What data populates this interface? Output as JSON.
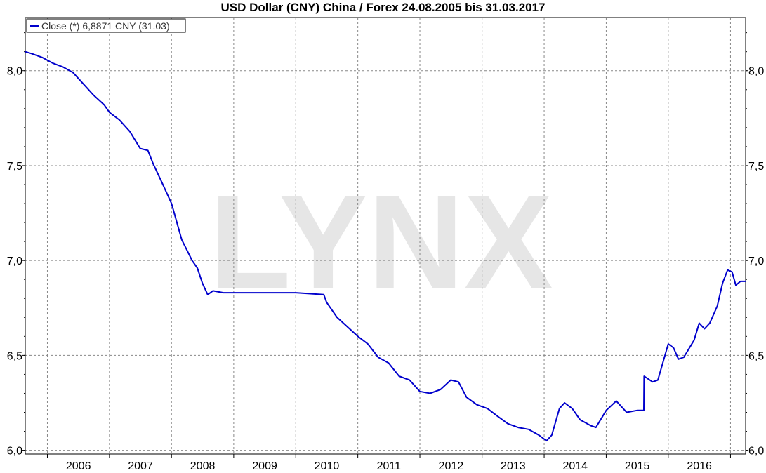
{
  "chart_data": {
    "type": "line",
    "title": "USD Dollar (CNY) China / Forex 24.08.2005 bis 31.03.2017",
    "watermark": "LYNX",
    "xlabel": "",
    "ylabel": "",
    "xlim": [
      "2005-08-24",
      "2017-03-31"
    ],
    "ylim": [
      5.98,
      8.28
    ],
    "y_ticks": [
      {
        "value": 6.0,
        "label": "6,0"
      },
      {
        "value": 6.5,
        "label": "6,5"
      },
      {
        "value": 7.0,
        "label": "7,0"
      },
      {
        "value": 7.5,
        "label": "7,5"
      },
      {
        "value": 8.0,
        "label": "8,0"
      }
    ],
    "x_ticks": [
      {
        "date": "2006-01-01",
        "label": "2006"
      },
      {
        "date": "2007-01-01",
        "label": "2007"
      },
      {
        "date": "2008-01-01",
        "label": "2008"
      },
      {
        "date": "2009-01-01",
        "label": "2009"
      },
      {
        "date": "2010-01-01",
        "label": "2010"
      },
      {
        "date": "2011-01-01",
        "label": "2011"
      },
      {
        "date": "2012-01-01",
        "label": "2012"
      },
      {
        "date": "2013-01-01",
        "label": "2013"
      },
      {
        "date": "2014-01-01",
        "label": "2014"
      },
      {
        "date": "2015-01-01",
        "label": "2015"
      },
      {
        "date": "2016-01-01",
        "label": "2016"
      }
    ],
    "grid": true,
    "legend_position": "top-left",
    "colors": {
      "line": "#0000cc",
      "grid": "#888888",
      "watermark": "#e6e6e6",
      "axis": "#000000"
    },
    "series": [
      {
        "name": "Close (*) 6,8871 CNY (31.03)",
        "points": [
          [
            "2005-08-24",
            8.1
          ],
          [
            "2005-10-01",
            8.09
          ],
          [
            "2005-12-01",
            8.07
          ],
          [
            "2006-02-01",
            8.04
          ],
          [
            "2006-04-01",
            8.02
          ],
          [
            "2006-06-01",
            7.99
          ],
          [
            "2006-08-01",
            7.93
          ],
          [
            "2006-10-01",
            7.87
          ],
          [
            "2006-12-01",
            7.82
          ],
          [
            "2007-01-01",
            7.78
          ],
          [
            "2007-03-01",
            7.74
          ],
          [
            "2007-05-01",
            7.68
          ],
          [
            "2007-07-01",
            7.59
          ],
          [
            "2007-08-15",
            7.58
          ],
          [
            "2007-09-15",
            7.51
          ],
          [
            "2007-11-01",
            7.42
          ],
          [
            "2008-01-01",
            7.3
          ],
          [
            "2008-03-01",
            7.11
          ],
          [
            "2008-05-01",
            7.0
          ],
          [
            "2008-06-01",
            6.96
          ],
          [
            "2008-07-01",
            6.88
          ],
          [
            "2008-08-01",
            6.82
          ],
          [
            "2008-09-01",
            6.84
          ],
          [
            "2008-11-01",
            6.83
          ],
          [
            "2009-01-01",
            6.83
          ],
          [
            "2009-06-01",
            6.83
          ],
          [
            "2010-01-01",
            6.83
          ],
          [
            "2010-06-15",
            6.82
          ],
          [
            "2010-07-01",
            6.78
          ],
          [
            "2010-09-01",
            6.7
          ],
          [
            "2010-11-01",
            6.65
          ],
          [
            "2011-01-01",
            6.6
          ],
          [
            "2011-03-01",
            6.56
          ],
          [
            "2011-05-01",
            6.49
          ],
          [
            "2011-07-01",
            6.46
          ],
          [
            "2011-09-01",
            6.39
          ],
          [
            "2011-11-01",
            6.37
          ],
          [
            "2012-01-01",
            6.31
          ],
          [
            "2012-03-01",
            6.3
          ],
          [
            "2012-05-01",
            6.32
          ],
          [
            "2012-07-01",
            6.37
          ],
          [
            "2012-08-15",
            6.36
          ],
          [
            "2012-10-01",
            6.28
          ],
          [
            "2012-12-01",
            6.24
          ],
          [
            "2013-02-01",
            6.22
          ],
          [
            "2013-04-01",
            6.18
          ],
          [
            "2013-06-01",
            6.14
          ],
          [
            "2013-08-01",
            6.12
          ],
          [
            "2013-10-01",
            6.11
          ],
          [
            "2013-12-01",
            6.08
          ],
          [
            "2014-01-15",
            6.05
          ],
          [
            "2014-02-15",
            6.08
          ],
          [
            "2014-04-01",
            6.22
          ],
          [
            "2014-05-01",
            6.25
          ],
          [
            "2014-06-15",
            6.22
          ],
          [
            "2014-08-01",
            6.16
          ],
          [
            "2014-10-01",
            6.13
          ],
          [
            "2014-11-01",
            6.12
          ],
          [
            "2015-01-01",
            6.21
          ],
          [
            "2015-03-01",
            6.26
          ],
          [
            "2015-05-01",
            6.2
          ],
          [
            "2015-07-01",
            6.21
          ],
          [
            "2015-08-10",
            6.21
          ],
          [
            "2015-08-12",
            6.39
          ],
          [
            "2015-10-01",
            6.36
          ],
          [
            "2015-11-01",
            6.37
          ],
          [
            "2016-01-01",
            6.56
          ],
          [
            "2016-02-01",
            6.54
          ],
          [
            "2016-03-01",
            6.48
          ],
          [
            "2016-04-01",
            6.49
          ],
          [
            "2016-06-01",
            6.58
          ],
          [
            "2016-07-01",
            6.67
          ],
          [
            "2016-08-01",
            6.64
          ],
          [
            "2016-09-01",
            6.67
          ],
          [
            "2016-10-15",
            6.76
          ],
          [
            "2016-11-15",
            6.88
          ],
          [
            "2016-12-15",
            6.95
          ],
          [
            "2017-01-10",
            6.94
          ],
          [
            "2017-02-01",
            6.87
          ],
          [
            "2017-03-01",
            6.89
          ],
          [
            "2017-03-31",
            6.89
          ]
        ]
      }
    ]
  }
}
